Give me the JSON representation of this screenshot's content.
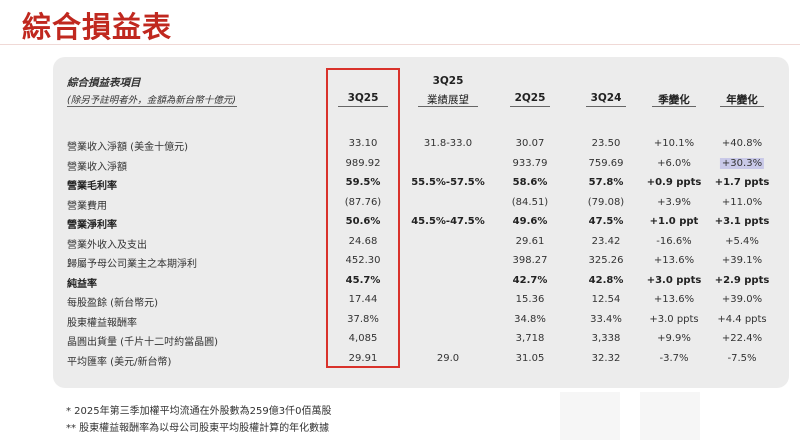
{
  "page": {
    "title": "綜合損益表"
  },
  "table": {
    "header_title": "綜合損益表項目",
    "header_sub": "(除另予註明者外，金額為新台幣十億元)",
    "columns": [
      {
        "line1": "",
        "line2": "3Q25"
      },
      {
        "line1": "3Q25",
        "line2": "業績展望"
      },
      {
        "line1": "",
        "line2": "2Q25"
      },
      {
        "line1": "",
        "line2": "3Q24"
      },
      {
        "line1": "",
        "line2": "季變化"
      },
      {
        "line1": "",
        "line2": "年變化"
      }
    ],
    "rows": [
      {
        "label": "營業收入淨額 (美金十億元)",
        "bold": false,
        "cells": [
          "33.10",
          "31.8-33.0",
          "30.07",
          "23.50",
          "+10.1%",
          "+40.8%"
        ]
      },
      {
        "label": "營業收入淨額",
        "bold": false,
        "cells": [
          "989.92",
          "",
          "933.79",
          "759.69",
          "+6.0%",
          "+30.3%"
        ]
      },
      {
        "label": "營業毛利率",
        "bold": true,
        "cells": [
          "59.5%",
          "55.5%-57.5%",
          "58.6%",
          "57.8%",
          "+0.9 ppts",
          "+1.7 ppts"
        ]
      },
      {
        "label": "營業費用",
        "bold": false,
        "cells": [
          "(87.76)",
          "",
          "(84.51)",
          "(79.08)",
          "+3.9%",
          "+11.0%"
        ]
      },
      {
        "label": "營業淨利率",
        "bold": true,
        "cells": [
          "50.6%",
          "45.5%-47.5%",
          "49.6%",
          "47.5%",
          "+1.0 ppt",
          "+3.1 ppts"
        ]
      },
      {
        "label": "營業外收入及支出",
        "bold": false,
        "cells": [
          "24.68",
          "",
          "29.61",
          "23.42",
          "-16.6%",
          "+5.4%"
        ]
      },
      {
        "label": "歸屬予母公司業主之本期淨利",
        "bold": false,
        "cells": [
          "452.30",
          "",
          "398.27",
          "325.26",
          "+13.6%",
          "+39.1%"
        ]
      },
      {
        "label": "純益率",
        "bold": true,
        "cells": [
          "45.7%",
          "",
          "42.7%",
          "42.8%",
          "+3.0 ppts",
          "+2.9 ppts"
        ]
      },
      {
        "label": "每股盈餘 (新台幣元)",
        "bold": false,
        "cells": [
          "17.44",
          "",
          "15.36",
          "12.54",
          "+13.6%",
          "+39.0%"
        ]
      },
      {
        "label": "股東權益報酬率",
        "bold": false,
        "cells": [
          "37.8%",
          "",
          "34.8%",
          "33.4%",
          "+3.0 ppts",
          "+4.4 ppts"
        ]
      },
      {
        "label": "晶圓出貨量 (千片十二吋約當晶圓)",
        "bold": false,
        "cells": [
          "4,085",
          "",
          "3,718",
          "3,338",
          "+9.9%",
          "+22.4%"
        ]
      },
      {
        "label": "平均匯率 (美元/新台幣)",
        "bold": false,
        "cells": [
          "29.91",
          "29.0",
          "31.05",
          "32.32",
          "-3.7%",
          "-7.5%"
        ]
      }
    ]
  },
  "footnotes": [
    "*   2025年第三季加權平均流通在外股數為259億3仟0佰萬股",
    "**  股東權益報酬率為以母公司股東平均股權計算的年化數據"
  ],
  "colors": {
    "title_red": "#c0281f",
    "highlight_box": "#d9322b",
    "panel_bg": "#ececec",
    "cell_highlight": "#c9c9e8"
  }
}
